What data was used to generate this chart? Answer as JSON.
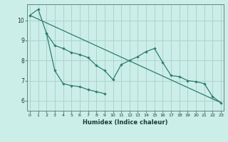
{
  "xlabel": "Humidex (Indice chaleur)",
  "background_color": "#cceee8",
  "grid_color": "#aad4cc",
  "line_color": "#2e7d6e",
  "ylim": [
    5.5,
    10.8
  ],
  "xlim": [
    -0.3,
    23.3
  ],
  "yticks": [
    6,
    7,
    8,
    9,
    10
  ],
  "xticks": [
    0,
    1,
    2,
    3,
    4,
    5,
    6,
    7,
    8,
    9,
    10,
    11,
    12,
    13,
    14,
    15,
    16,
    17,
    18,
    19,
    20,
    21,
    22,
    23
  ],
  "line_top": {
    "x": [
      0,
      1,
      2,
      3,
      4,
      5,
      6,
      7,
      8,
      9,
      10,
      11,
      12,
      13,
      14,
      15,
      16,
      17,
      18,
      19,
      20,
      21,
      22,
      23
    ],
    "y": [
      10.25,
      10.55,
      9.35,
      8.75,
      8.6,
      8.4,
      8.3,
      8.15,
      7.75,
      7.5,
      7.05,
      7.8,
      8.0,
      8.2,
      8.45,
      8.6,
      7.9,
      7.25,
      7.2,
      7.0,
      6.95,
      6.85,
      6.2,
      5.9
    ]
  },
  "line_bottom": {
    "x": [
      2,
      3,
      4,
      5,
      6,
      7,
      8,
      9
    ],
    "y": [
      9.35,
      7.5,
      6.85,
      6.75,
      6.7,
      6.55,
      6.45,
      6.35
    ]
  },
  "trend": {
    "x": [
      0,
      23
    ],
    "y": [
      10.25,
      5.9
    ]
  }
}
